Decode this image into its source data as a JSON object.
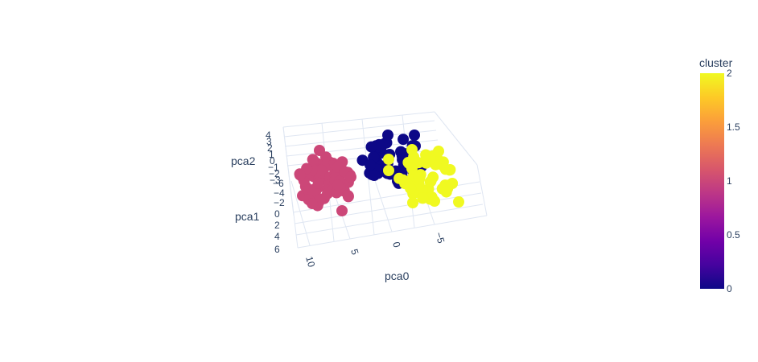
{
  "chart_data": {
    "type": "scatter",
    "projection": "3d",
    "axes": {
      "x": {
        "label": "pca0",
        "ticks": [
          "10",
          "5",
          "0",
          "−5"
        ]
      },
      "y": {
        "label": "pca1",
        "ticks": [
          "−6",
          "−4",
          "−2",
          "0",
          "2",
          "4",
          "6"
        ]
      },
      "z": {
        "label": "pca2",
        "ticks": [
          "4",
          "3",
          "2",
          "1",
          "0",
          "−1",
          "−2",
          "−3"
        ]
      }
    },
    "grid": true,
    "colorbar": {
      "title": "cluster",
      "ticks": [
        "2",
        "1.5",
        "1",
        "0.5",
        "0"
      ],
      "range": [
        0,
        2
      ],
      "colorscale": [
        "#0d0887",
        "#46039f",
        "#7201a8",
        "#9c179e",
        "#bd3786",
        "#d8576b",
        "#ed7953",
        "#fb9f3a",
        "#fdca26",
        "#f0f921"
      ]
    },
    "clusters": [
      {
        "cluster": 0,
        "color": "#0d0887",
        "approx_center": {
          "pca0": -2,
          "pca1": -2,
          "pca2": 2
        }
      },
      {
        "cluster": 1,
        "color": "#cc4778",
        "approx_center": {
          "pca0": 9,
          "pca1": 0,
          "pca2": -1
        }
      },
      {
        "cluster": 2,
        "color": "#f0f921",
        "approx_center": {
          "pca0": -5,
          "pca1": -3,
          "pca2": 0
        }
      }
    ]
  }
}
